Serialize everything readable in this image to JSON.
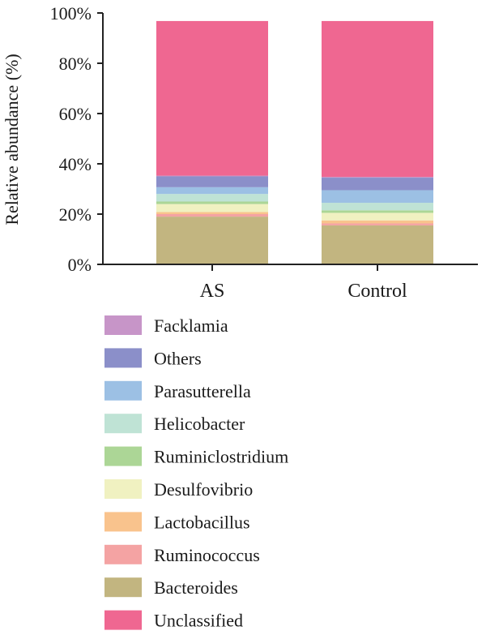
{
  "chart_data": {
    "type": "bar",
    "stacked": true,
    "ylabel": "Relative abundance (%)",
    "xlabel": "",
    "ylim": [
      0,
      100
    ],
    "yticks": [
      "0%",
      "20%",
      "40%",
      "60%",
      "80%",
      "100%"
    ],
    "categories": [
      "AS",
      "Control"
    ],
    "series": [
      {
        "name": "Bacteroides",
        "color": "#c2b580",
        "values": [
          19.0,
          15.5
        ]
      },
      {
        "name": "Ruminococcus",
        "color": "#f4a3a3",
        "values": [
          1.0,
          0.8
        ]
      },
      {
        "name": "Lactobacillus",
        "color": "#f9c38d",
        "values": [
          0.8,
          1.2
        ]
      },
      {
        "name": "Desulfovibrio",
        "color": "#f0f1c1",
        "values": [
          3.2,
          3.0
        ]
      },
      {
        "name": "Ruminiclostridium",
        "color": "#acd696",
        "values": [
          1.0,
          1.0
        ]
      },
      {
        "name": "Helicobacter",
        "color": "#bfe3d5",
        "values": [
          3.0,
          3.0
        ]
      },
      {
        "name": "Parasutterella",
        "color": "#9cc0e4",
        "values": [
          2.7,
          5.0
        ]
      },
      {
        "name": "Others",
        "color": "#8b8fc9",
        "values": [
          4.3,
          5.0
        ]
      },
      {
        "name": "Facklamia",
        "color": "#c795c8",
        "values": [
          0.3,
          0.3
        ]
      },
      {
        "name": "Unclassified",
        "color": "#ef6791",
        "values": [
          61.5,
          62.0
        ]
      }
    ],
    "legend_order": [
      "Facklamia",
      "Others",
      "Parasutterella",
      "Helicobacter",
      "Ruminiclostridium",
      "Desulfovibrio",
      "Lactobacillus",
      "Ruminococcus",
      "Bacteroides",
      "Unclassified"
    ],
    "grid": false,
    "legend_position": "bottom"
  }
}
